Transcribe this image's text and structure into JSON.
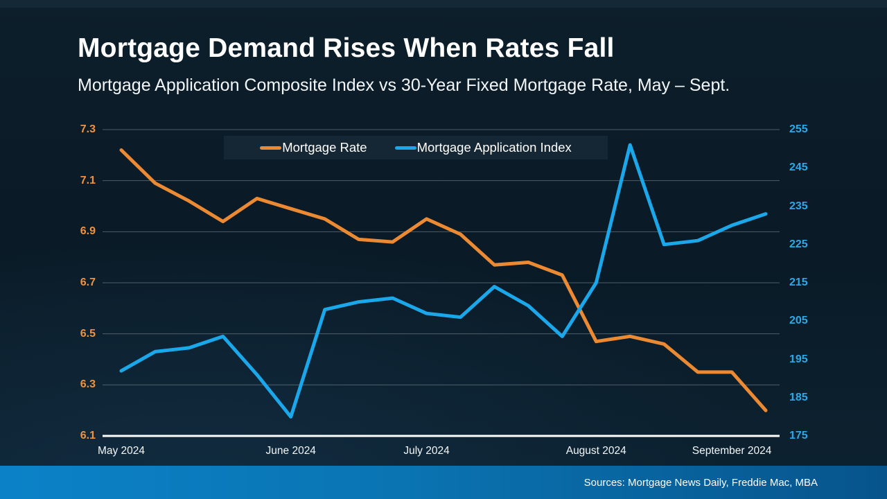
{
  "page": {
    "title": "Mortgage Demand Rises When Rates Fall",
    "subtitle": "Mortgage Application Composite Index vs 30-Year Fixed Mortgage Rate, May – Sept.",
    "source": "Sources: Mortgage News Daily, Freddie Mac, MBA"
  },
  "legend": {
    "items": [
      {
        "label": "Mortgage Rate",
        "color": "#EB8A33"
      },
      {
        "label": "Mortgage Application Index",
        "color": "#1BA8EA"
      }
    ]
  },
  "chart_data": {
    "type": "line",
    "title": "Mortgage Demand Rises When Rates Fall",
    "subtitle": "Mortgage Application Composite Index vs 30-Year Fixed Mortgage Rate, May – Sept.",
    "grid": true,
    "legend_position": "top-center",
    "x": {
      "n_points": 20,
      "labels": [
        "May 2024",
        "June 2024",
        "July 2024",
        "August 2024",
        "September 2024"
      ],
      "label_point_index": [
        0,
        5,
        9,
        14,
        18
      ]
    },
    "axes": {
      "left": {
        "min": 6.1,
        "max": 7.3,
        "ticks": [
          "7.3",
          "7.1",
          "6.9",
          "6.7",
          "6.5",
          "6.3",
          "6.1"
        ],
        "color": "#F0923F"
      },
      "right": {
        "min": 175,
        "max": 255,
        "ticks": [
          "255",
          "245",
          "235",
          "225",
          "215",
          "205",
          "195",
          "185",
          "175"
        ],
        "color": "#2CA9E8"
      }
    },
    "series": [
      {
        "name": "Mortgage Rate",
        "axis": "left",
        "color": "#EB8A33",
        "values": [
          7.22,
          7.09,
          7.02,
          6.94,
          7.03,
          6.99,
          6.95,
          6.87,
          6.86,
          6.95,
          6.89,
          6.77,
          6.78,
          6.73,
          6.47,
          6.49,
          6.46,
          6.35,
          6.35,
          6.2
        ]
      },
      {
        "name": "Mortgage Application Index",
        "axis": "right",
        "color": "#1BA8EA",
        "values": [
          192,
          197,
          198,
          201,
          191,
          180,
          208,
          210,
          211,
          207,
          206,
          214,
          209,
          201,
          215,
          251,
          225,
          226,
          230,
          233
        ]
      }
    ]
  }
}
